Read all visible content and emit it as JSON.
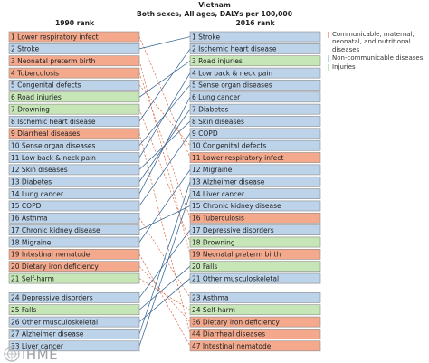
{
  "title": {
    "line1": "Vietnam",
    "line2": "Both sexes, All ages, DALYs per 100,000"
  },
  "left_header": "1990 rank",
  "right_header": "2016 rank",
  "colors": {
    "communicable": "#f4a98c",
    "noncommunicable": "#bcd3ea",
    "injuries": "#c6e6b8",
    "border": "#8a8a8a",
    "connector": "#2a5d8f",
    "connector_down": "#d86b4a"
  },
  "legend": [
    {
      "label": "Communicable, maternal, neonatal, and nutritional diseases",
      "group": "communicable"
    },
    {
      "label": "Non-communicable diseases",
      "group": "noncommunicable"
    },
    {
      "label": "Injuries",
      "group": "injuries"
    }
  ],
  "logo_text": "IHME",
  "chart_data": {
    "type": "bump",
    "left_ranks": [
      {
        "label": "1 Lower respiratory infect",
        "group": "communicable",
        "new_rank": 11
      },
      {
        "label": "2 Stroke",
        "group": "noncommunicable",
        "new_rank": 1
      },
      {
        "label": "3 Neonatal preterm birth",
        "group": "communicable",
        "new_rank": 19
      },
      {
        "label": "4 Tuberculosis",
        "group": "communicable",
        "new_rank": 16
      },
      {
        "label": "5 Congenital defects",
        "group": "noncommunicable",
        "new_rank": 10
      },
      {
        "label": "6 Road injuries",
        "group": "injuries",
        "new_rank": 3
      },
      {
        "label": "7 Drowning",
        "group": "injuries",
        "new_rank": 18
      },
      {
        "label": "8 Ischemic heart disease",
        "group": "noncommunicable",
        "new_rank": 2
      },
      {
        "label": "9 Diarrheal diseases",
        "group": "communicable",
        "new_rank": 44
      },
      {
        "label": "10 Sense organ diseases",
        "group": "noncommunicable",
        "new_rank": 5
      },
      {
        "label": "11 Low back & neck pain",
        "group": "noncommunicable",
        "new_rank": 4
      },
      {
        "label": "12 Skin diseases",
        "group": "noncommunicable",
        "new_rank": 8
      },
      {
        "label": "13 Diabetes",
        "group": "noncommunicable",
        "new_rank": 7
      },
      {
        "label": "14 Lung cancer",
        "group": "noncommunicable",
        "new_rank": 6
      },
      {
        "label": "15 COPD",
        "group": "noncommunicable",
        "new_rank": 9
      },
      {
        "label": "16 Asthma",
        "group": "noncommunicable",
        "new_rank": 23
      },
      {
        "label": "17 Chronic kidney disease",
        "group": "noncommunicable",
        "new_rank": 15
      },
      {
        "label": "18 Migraine",
        "group": "noncommunicable",
        "new_rank": 12
      },
      {
        "label": "19 Intestinal nematode",
        "group": "communicable",
        "new_rank": 47
      },
      {
        "label": "20 Dietary iron deficiency",
        "group": "communicable",
        "new_rank": 36
      },
      {
        "label": "21 Self-harm",
        "group": "injuries",
        "new_rank": 24
      },
      {
        "label": "24 Depressive disorders",
        "group": "noncommunicable",
        "new_rank": 17
      },
      {
        "label": "25 Falls",
        "group": "injuries",
        "new_rank": 20
      },
      {
        "label": "26 Other musculoskeletal",
        "group": "noncommunicable",
        "new_rank": 21
      },
      {
        "label": "27 Alzheimer disease",
        "group": "noncommunicable",
        "new_rank": 13
      },
      {
        "label": "33 Liver cancer",
        "group": "noncommunicable",
        "new_rank": 14
      }
    ],
    "right_ranks": [
      {
        "label": "1 Stroke",
        "group": "noncommunicable"
      },
      {
        "label": "2 Ischemic heart disease",
        "group": "noncommunicable"
      },
      {
        "label": "3 Road injuries",
        "group": "injuries"
      },
      {
        "label": "4 Low back & neck pain",
        "group": "noncommunicable"
      },
      {
        "label": "5 Sense organ diseases",
        "group": "noncommunicable"
      },
      {
        "label": "6 Lung cancer",
        "group": "noncommunicable"
      },
      {
        "label": "7 Diabetes",
        "group": "noncommunicable"
      },
      {
        "label": "8 Skin diseases",
        "group": "noncommunicable"
      },
      {
        "label": "9 COPD",
        "group": "noncommunicable"
      },
      {
        "label": "10 Congenital defects",
        "group": "noncommunicable"
      },
      {
        "label": "11 Lower respiratory infect",
        "group": "communicable"
      },
      {
        "label": "12 Migraine",
        "group": "noncommunicable"
      },
      {
        "label": "13 Alzheimer disease",
        "group": "noncommunicable"
      },
      {
        "label": "14 Liver cancer",
        "group": "noncommunicable"
      },
      {
        "label": "15 Chronic kidney disease",
        "group": "noncommunicable"
      },
      {
        "label": "16 Tuberculosis",
        "group": "communicable"
      },
      {
        "label": "17 Depressive disorders",
        "group": "noncommunicable"
      },
      {
        "label": "18 Drowning",
        "group": "injuries"
      },
      {
        "label": "19 Neonatal preterm birth",
        "group": "communicable"
      },
      {
        "label": "20 Falls",
        "group": "injuries"
      },
      {
        "label": "21 Other musculoskeletal",
        "group": "noncommunicable"
      },
      {
        "label": "23 Asthma",
        "group": "noncommunicable"
      },
      {
        "label": "24 Self-harm",
        "group": "injuries"
      },
      {
        "label": "36 Dietary iron deficiency",
        "group": "communicable"
      },
      {
        "label": "44 Diarrheal diseases",
        "group": "communicable"
      },
      {
        "label": "47 Intestinal nematode",
        "group": "communicable"
      }
    ]
  }
}
